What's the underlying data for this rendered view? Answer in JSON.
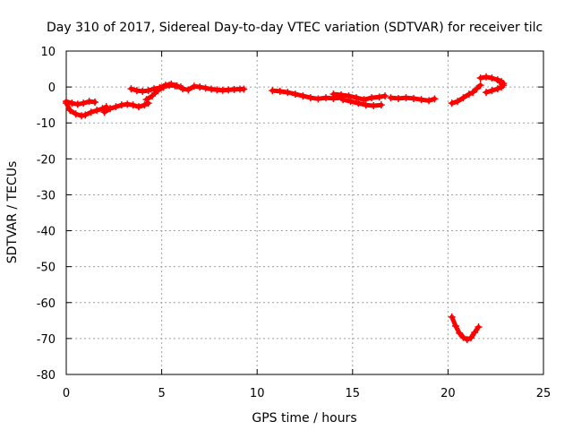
{
  "chart_data": {
    "type": "scatter",
    "title": "Day 310 of 2017, Sidereal Day-to-day VTEC variation (SDTVAR) for receiver tilc",
    "xlabel": "GPS time / hours",
    "ylabel": "SDTVAR / TECUs",
    "xlim": [
      0,
      25
    ],
    "ylim": [
      -80,
      10
    ],
    "xticks": [
      0,
      5,
      10,
      15,
      20,
      25
    ],
    "yticks": [
      10,
      0,
      -10,
      -20,
      -30,
      -40,
      -50,
      -60,
      -70,
      -80
    ],
    "xtick_labels": [
      "0",
      "5",
      "10",
      "15",
      "20",
      "25"
    ],
    "ytick_labels": [
      "10",
      "0",
      "-10",
      "-20",
      "-30",
      "-40",
      "-50",
      "-60",
      "-70",
      "-80"
    ],
    "grid": true,
    "series_color": "#ff0000",
    "series": [
      {
        "x": [
          0.0,
          0.2,
          0.5,
          0.8,
          1.0,
          1.3,
          1.6,
          1.9,
          2.1
        ],
        "y": [
          -4.5,
          -6.5,
          -7.5,
          -8.0,
          -7.8,
          -7.0,
          -6.5,
          -6.0,
          -5.5
        ]
      },
      {
        "x": [
          0.0,
          0.3,
          0.6,
          0.9,
          1.2,
          1.5
        ],
        "y": [
          -4.0,
          -4.5,
          -4.8,
          -4.5,
          -4.0,
          -4.2
        ]
      },
      {
        "x": [
          2.0,
          2.3,
          2.6,
          2.9,
          3.2,
          3.5,
          3.8,
          4.1,
          4.3
        ],
        "y": [
          -7.0,
          -6.0,
          -5.5,
          -5.0,
          -4.8,
          -5.0,
          -5.5,
          -5.0,
          -4.5
        ]
      },
      {
        "x": [
          3.4,
          3.7,
          4.0,
          4.3,
          4.6,
          4.9,
          5.2,
          5.5,
          5.8,
          6.1,
          6.4,
          6.7,
          7.0,
          7.3,
          7.6,
          7.9,
          8.2,
          8.5,
          8.8,
          9.1,
          9.3
        ],
        "y": [
          -0.5,
          -1.0,
          -1.2,
          -1.0,
          -0.5,
          -0.2,
          0.5,
          0.8,
          0.3,
          -0.5,
          -0.8,
          0.2,
          0.0,
          -0.3,
          -0.6,
          -0.8,
          -0.9,
          -0.8,
          -0.7,
          -0.6,
          -0.6
        ]
      },
      {
        "x": [
          4.2,
          4.5,
          4.8,
          5.1,
          5.4,
          5.7,
          6.0
        ],
        "y": [
          -3.5,
          -2.5,
          -1.0,
          0.0,
          0.5,
          0.3,
          0.0
        ]
      },
      {
        "x": [
          10.8,
          11.2,
          11.6,
          12.0,
          12.4,
          12.8,
          13.2,
          13.6,
          14.0,
          14.4
        ],
        "y": [
          -1.0,
          -1.2,
          -1.5,
          -2.0,
          -2.5,
          -3.0,
          -3.3,
          -3.0,
          -3.2,
          -3.0
        ]
      },
      {
        "x": [
          14.0,
          14.4,
          14.8,
          15.2,
          15.6,
          16.0,
          16.4,
          16.7
        ],
        "y": [
          -2.0,
          -2.2,
          -2.5,
          -3.0,
          -3.5,
          -3.0,
          -2.8,
          -2.5
        ]
      },
      {
        "x": [
          14.5,
          14.9,
          15.3,
          15.7,
          16.1,
          16.5
        ],
        "y": [
          -3.5,
          -4.0,
          -4.5,
          -5.0,
          -5.2,
          -5.0
        ]
      },
      {
        "x": [
          17.0,
          17.4,
          17.8,
          18.2,
          18.6,
          19.0,
          19.3
        ],
        "y": [
          -3.0,
          -3.2,
          -3.0,
          -3.2,
          -3.5,
          -3.8,
          -3.3
        ]
      },
      {
        "x": [
          20.2,
          20.5,
          20.8,
          21.1,
          21.3,
          21.5,
          21.7
        ],
        "y": [
          -4.5,
          -4.0,
          -3.0,
          -2.0,
          -1.5,
          -0.5,
          0.5
        ]
      },
      {
        "x": [
          21.7,
          22.0,
          22.3,
          22.6,
          22.8,
          22.9
        ],
        "y": [
          2.5,
          2.8,
          2.5,
          2.0,
          1.5,
          1.0
        ]
      },
      {
        "x": [
          22.0,
          22.3,
          22.6,
          22.8,
          22.9,
          22.7
        ],
        "y": [
          -1.5,
          -1.0,
          -0.5,
          0.0,
          0.5,
          1.5
        ]
      },
      {
        "x": [
          20.2,
          20.4,
          20.6,
          20.8,
          21.0,
          21.2,
          21.4,
          21.6
        ],
        "y": [
          -64.0,
          -66.5,
          -68.5,
          -69.7,
          -70.3,
          -69.8,
          -68.3,
          -66.8
        ]
      }
    ]
  }
}
